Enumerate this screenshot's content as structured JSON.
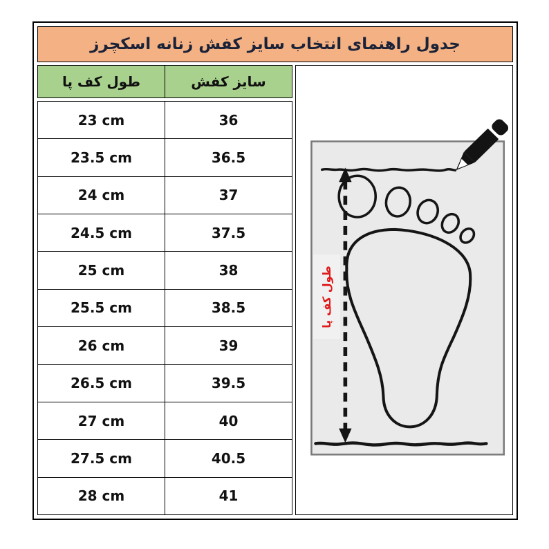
{
  "title": "جدول راهنمای انتخاب سایز کفش زنانه اسکچرز",
  "table": {
    "headers": {
      "foot_length": "طول کف پا",
      "shoe_size": "سایز کفش"
    },
    "rows": [
      {
        "foot_length": "23 cm",
        "shoe_size": "36"
      },
      {
        "foot_length": "23.5 cm",
        "shoe_size": "36.5"
      },
      {
        "foot_length": "24 cm",
        "shoe_size": "37"
      },
      {
        "foot_length": "24.5 cm",
        "shoe_size": "37.5"
      },
      {
        "foot_length": "25 cm",
        "shoe_size": "38"
      },
      {
        "foot_length": "25.5 cm",
        "shoe_size": "38.5"
      },
      {
        "foot_length": "26 cm",
        "shoe_size": "39"
      },
      {
        "foot_length": "26.5 cm",
        "shoe_size": "39.5"
      },
      {
        "foot_length": "27 cm",
        "shoe_size": "40"
      },
      {
        "foot_length": "27.5 cm",
        "shoe_size": "40.5"
      },
      {
        "foot_length": "28 cm",
        "shoe_size": "41"
      }
    ]
  },
  "illustration": {
    "label": "طول کف پا",
    "icons": {
      "pencil": "pencil-icon",
      "foot": "foot-outline",
      "arrow": "measure-arrow",
      "top_line": "hand-drawn-line-top",
      "bottom_line": "hand-drawn-line-bottom"
    }
  },
  "colors": {
    "title_bg": "#f4b183",
    "title_fg": "#1a2238",
    "header_bg": "#a9d18e",
    "accent_red": "#e01b1b",
    "box_bg": "#eaeaea",
    "box_border": "#7a7a7a",
    "border_dark": "#000000"
  }
}
